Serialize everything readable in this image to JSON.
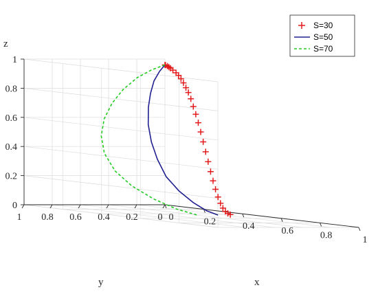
{
  "chart_data": {
    "type": "line3d",
    "axes": {
      "x": {
        "label": "x",
        "lim": [
          0,
          1
        ],
        "ticks": [
          "0",
          "0.2",
          "0.4",
          "0.6",
          "0.8",
          "1"
        ]
      },
      "y": {
        "label": "y",
        "lim": [
          0,
          1
        ],
        "ticks": [
          "0",
          "0.2",
          "0.4",
          "0.6",
          "0.8",
          "1"
        ]
      },
      "z": {
        "label": "z",
        "lim": [
          0,
          1
        ],
        "ticks": [
          "0",
          "0.2",
          "0.4",
          "0.6",
          "0.8",
          "1"
        ]
      }
    },
    "grid": true,
    "legend_position": "top-right",
    "series": [
      {
        "name": "S=30",
        "style": "plus-markers",
        "color": "#e31a1c",
        "points": [
          [
            0.0,
            0.0,
            0.96
          ],
          [
            0.01,
            0.01,
            0.96
          ],
          [
            0.02,
            0.01,
            0.955
          ],
          [
            0.035,
            0.02,
            0.95
          ],
          [
            0.05,
            0.03,
            0.945
          ],
          [
            0.07,
            0.04,
            0.935
          ],
          [
            0.09,
            0.045,
            0.92
          ],
          [
            0.11,
            0.055,
            0.905
          ],
          [
            0.13,
            0.065,
            0.885
          ],
          [
            0.15,
            0.075,
            0.86
          ],
          [
            0.17,
            0.085,
            0.83
          ],
          [
            0.19,
            0.095,
            0.8
          ],
          [
            0.21,
            0.105,
            0.76
          ],
          [
            0.23,
            0.115,
            0.71
          ],
          [
            0.25,
            0.125,
            0.66
          ],
          [
            0.27,
            0.135,
            0.605
          ],
          [
            0.29,
            0.145,
            0.545
          ],
          [
            0.31,
            0.155,
            0.48
          ],
          [
            0.33,
            0.165,
            0.415
          ],
          [
            0.35,
            0.175,
            0.35
          ],
          [
            0.37,
            0.185,
            0.285
          ],
          [
            0.39,
            0.195,
            0.225
          ],
          [
            0.41,
            0.205,
            0.17
          ],
          [
            0.43,
            0.215,
            0.12
          ],
          [
            0.45,
            0.225,
            0.08
          ],
          [
            0.47,
            0.235,
            0.05
          ],
          [
            0.49,
            0.245,
            0.03
          ],
          [
            0.51,
            0.255,
            0.02
          ],
          [
            0.53,
            0.265,
            0.015
          ]
        ]
      },
      {
        "name": "S=50",
        "style": "solid",
        "color": "#1f1f8f",
        "points": [
          [
            0.0,
            0.0,
            0.96
          ],
          [
            0.03,
            0.08,
            0.92
          ],
          [
            0.06,
            0.16,
            0.86
          ],
          [
            0.1,
            0.24,
            0.78
          ],
          [
            0.14,
            0.31,
            0.69
          ],
          [
            0.19,
            0.38,
            0.58
          ],
          [
            0.25,
            0.44,
            0.47
          ],
          [
            0.31,
            0.48,
            0.36
          ],
          [
            0.37,
            0.5,
            0.25
          ],
          [
            0.43,
            0.49,
            0.16
          ],
          [
            0.48,
            0.46,
            0.09
          ],
          [
            0.52,
            0.42,
            0.04
          ],
          [
            0.55,
            0.38,
            0.015
          ]
        ]
      },
      {
        "name": "S=70",
        "style": "dashed",
        "color": "#22cc22",
        "points": [
          [
            0.0,
            0.0,
            0.96
          ],
          [
            0.02,
            0.12,
            0.93
          ],
          [
            0.04,
            0.25,
            0.88
          ],
          [
            0.06,
            0.38,
            0.8
          ],
          [
            0.09,
            0.5,
            0.71
          ],
          [
            0.13,
            0.61,
            0.61
          ],
          [
            0.18,
            0.7,
            0.5
          ],
          [
            0.24,
            0.76,
            0.39
          ],
          [
            0.31,
            0.78,
            0.28
          ],
          [
            0.38,
            0.76,
            0.19
          ],
          [
            0.45,
            0.7,
            0.11
          ],
          [
            0.51,
            0.62,
            0.05
          ],
          [
            0.55,
            0.53,
            0.015
          ]
        ]
      }
    ]
  }
}
